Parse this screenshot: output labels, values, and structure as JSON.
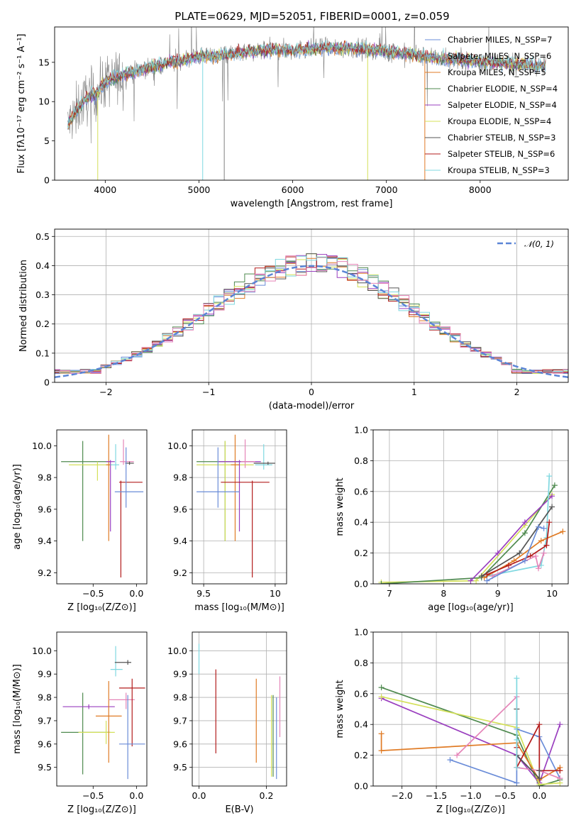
{
  "title": "PLATE=0629, MJD=52051, FIBERID=0001, z=0.059",
  "colors": {
    "chabrier_miles": "#6a8cd8",
    "salpeter_miles": "#7fb3e0",
    "kroupa_miles": "#e07b25",
    "chabrier_elodie": "#4f8a4f",
    "salpeter_elodie": "#9a3fbf",
    "kroupa_elodie": "#d4e05a",
    "chabrier_stelib": "#555555",
    "salpeter_stelib": "#b31c1c",
    "kroupa_stelib": "#7fd8e0",
    "pink": "#e585b8",
    "data": "#808080"
  },
  "chart_data": [
    {
      "id": "spectrum",
      "type": "line",
      "title": "PLATE=0629, MJD=52051, FIBERID=0001, z=0.059",
      "xlabel": "wavelength [Angstrom, rest frame]",
      "ylabel": "Flux [fλ10⁻¹⁷ erg cm⁻² s⁻¹ A⁻¹]",
      "xlim": [
        3460,
        8940
      ],
      "ylim": [
        0,
        19.5
      ],
      "xticks": [
        4000,
        5000,
        6000,
        7000,
        8000
      ],
      "yticks": [
        0,
        5,
        10,
        15
      ],
      "grid": false,
      "legend": "right",
      "legend_entries": [
        "Chabrier MILES, N_SSP=7",
        "Salpeter MILES, N_SSP=6",
        "Kroupa MILES, N_SSP=5",
        "Chabrier ELODIE, N_SSP=4",
        "Salpeter ELODIE, N_SSP=4",
        "Kroupa ELODIE, N_SSP=4",
        "Chabrier STELIB, N_SSP=3",
        "Salpeter STELIB, N_SSP=6",
        "Kroupa STELIB, N_SSP=3"
      ],
      "continuum": {
        "x": [
          3600,
          3700,
          3800,
          3900,
          4000,
          4100,
          4300,
          4500,
          4800,
          5000,
          5200,
          5500,
          5800,
          6000,
          6300,
          6600,
          7000,
          7300,
          7600,
          7800,
          8100,
          8400,
          8700
        ],
        "y": [
          7,
          9,
          10.5,
          11,
          12.5,
          13,
          13.8,
          14.5,
          15.2,
          15.8,
          15.8,
          16.3,
          16.6,
          16.5,
          16.8,
          16.8,
          16.4,
          15.9,
          15.5,
          15.3,
          15,
          14.8,
          14.5
        ]
      }
    },
    {
      "id": "residuals",
      "type": "line",
      "xlabel": "(data-model)/error",
      "ylabel": "Normed distribution",
      "xlim": [
        -2.5,
        2.5
      ],
      "ylim": [
        0,
        0.525
      ],
      "xticks": [
        -2,
        -1,
        0,
        1,
        2
      ],
      "yticks": [
        0.0,
        0.1,
        0.2,
        0.3,
        0.4,
        0.5
      ],
      "grid": true,
      "legend": "top-right",
      "legend_entries": [
        "𝒩(0, 1)"
      ]
    },
    {
      "id": "age_vs_Z",
      "type": "scatter",
      "xlabel": "Z [log₁₀(Z/Z⊙)]",
      "ylabel": "age  [log₁₀(age/yr)]",
      "xlim": [
        -0.92,
        0.12
      ],
      "ylim": [
        9.13,
        10.1
      ],
      "xticks": [
        -0.5,
        0.0
      ],
      "yticks": [
        9.2,
        9.4,
        9.6,
        9.8,
        10.0
      ],
      "grid": false,
      "points": [
        {
          "color": "chabrier_elodie",
          "x": -0.62,
          "xerr": [
            0.25,
            0.32
          ],
          "y": 9.9,
          "yerr": [
            0.5,
            0.13
          ]
        },
        {
          "color": "kroupa_elodie",
          "x": -0.45,
          "xerr": [
            0.33,
            0.17
          ],
          "y": 9.88,
          "yerr": [
            0.1,
            0.02
          ]
        },
        {
          "color": "kroupa_miles",
          "x": -0.32,
          "xerr": [
            0.03,
            0.03
          ],
          "y": 9.88,
          "yerr": [
            0.48,
            0.19
          ]
        },
        {
          "color": "salpeter_elodie",
          "x": -0.3,
          "xerr": [
            0.05,
            0.05
          ],
          "y": 9.9,
          "yerr": [
            0.44,
            0.01
          ]
        },
        {
          "color": "kroupa_stelib",
          "x": -0.24,
          "xerr": [
            0.06,
            0.04
          ],
          "y": 9.88,
          "yerr": [
            0.03,
            0.13
          ]
        },
        {
          "color": "pink",
          "x": -0.15,
          "xerr": [
            0.04,
            0.12
          ],
          "y": 9.9,
          "yerr": [
            0.02,
            0.14
          ]
        },
        {
          "color": "chabrier_stelib",
          "x": -0.08,
          "xerr": [
            0.05,
            0.05
          ],
          "y": 9.89,
          "yerr": [
            0.01,
            0.01
          ]
        },
        {
          "color": "salpeter_stelib",
          "x": -0.18,
          "xerr": [
            0.02,
            0.25
          ],
          "y": 9.77,
          "yerr": [
            0.6,
            0.01
          ]
        },
        {
          "color": "chabrier_miles",
          "x": -0.12,
          "xerr": [
            0.13,
            0.2
          ],
          "y": 9.71,
          "yerr": [
            0.1,
            0.28
          ]
        }
      ]
    },
    {
      "id": "age_vs_mass",
      "type": "scatter",
      "xlabel": "mass [log₁₀(M/M⊙)]",
      "ylabel": "",
      "xlim": [
        9.42,
        10.08
      ],
      "ylim": [
        9.13,
        10.1
      ],
      "xticks": [
        9.5,
        10.0
      ],
      "yticks": [
        9.2,
        9.4,
        9.6,
        9.8,
        10.0
      ],
      "grid": true,
      "points": [
        {
          "color": "chabrier_elodie",
          "x": 9.65,
          "xerr": [
            0.2,
            0.2
          ],
          "y": 9.9,
          "yerr": [
            0.5,
            0.13
          ]
        },
        {
          "color": "kroupa_elodie",
          "x": 9.65,
          "xerr": [
            0.2,
            0.2
          ],
          "y": 9.88,
          "yerr": [
            0.48,
            0.15
          ]
        },
        {
          "color": "kroupa_miles",
          "x": 9.72,
          "xerr": [
            0.03,
            0.03
          ],
          "y": 9.88,
          "yerr": [
            0.48,
            0.19
          ]
        },
        {
          "color": "salpeter_elodie",
          "x": 9.75,
          "xerr": [
            0.15,
            0.15
          ],
          "y": 9.9,
          "yerr": [
            0.44,
            0.01
          ]
        },
        {
          "color": "pink",
          "x": 9.79,
          "xerr": [
            0.03,
            0.07
          ],
          "y": 9.9,
          "yerr": [
            0.04,
            0.14
          ]
        },
        {
          "color": "kroupa_stelib",
          "x": 9.92,
          "xerr": [
            0.06,
            0.06
          ],
          "y": 9.88,
          "yerr": [
            0.03,
            0.13
          ]
        },
        {
          "color": "chabrier_stelib",
          "x": 9.95,
          "xerr": [
            0.1,
            0.05
          ],
          "y": 9.89,
          "yerr": [
            0.01,
            0.01
          ]
        },
        {
          "color": "salpeter_stelib",
          "x": 9.84,
          "xerr": [
            0.22,
            0.12
          ],
          "y": 9.77,
          "yerr": [
            0.6,
            0.01
          ]
        },
        {
          "color": "chabrier_miles",
          "x": 9.6,
          "xerr": [
            0.15,
            0.15
          ],
          "y": 9.71,
          "yerr": [
            0.1,
            0.28
          ]
        }
      ]
    },
    {
      "id": "weight_vs_age",
      "type": "line",
      "xlabel": "age  [log₁₀(age/yr)]",
      "ylabel": "mass weight",
      "xlim": [
        6.7,
        10.3
      ],
      "ylim": [
        0,
        1.0
      ],
      "xticks": [
        7,
        8,
        9,
        10
      ],
      "yticks": [
        0.0,
        0.2,
        0.4,
        0.6,
        0.8,
        1.0
      ],
      "grid": true,
      "series": [
        {
          "color": "kroupa_elodie",
          "x": [
            6.85,
            8.6,
            9.5,
            10.0
          ],
          "y": [
            0.01,
            0.02,
            0.38,
            0.58
          ]
        },
        {
          "color": "chabrier_elodie",
          "x": [
            6.85,
            8.7,
            9.5,
            10.05
          ],
          "y": [
            0.0,
            0.04,
            0.33,
            0.64
          ]
        },
        {
          "color": "salpeter_elodie",
          "x": [
            8.5,
            9.0,
            9.5,
            10.0
          ],
          "y": [
            0.02,
            0.2,
            0.4,
            0.57
          ]
        },
        {
          "color": "kroupa_stelib",
          "x": [
            8.8,
            9.8,
            9.9,
            9.95
          ],
          "y": [
            0.05,
            0.12,
            0.3,
            0.7
          ]
        },
        {
          "color": "kroupa_miles",
          "x": [
            8.75,
            9.3,
            9.8,
            10.2
          ],
          "y": [
            0.04,
            0.15,
            0.28,
            0.34
          ]
        },
        {
          "color": "chabrier_stelib",
          "x": [
            8.7,
            9.4,
            10.0
          ],
          "y": [
            0.05,
            0.2,
            0.5
          ]
        },
        {
          "color": "salpeter_stelib",
          "x": [
            8.8,
            9.2,
            9.6,
            9.9,
            9.95
          ],
          "y": [
            0.06,
            0.12,
            0.18,
            0.25,
            0.4
          ]
        },
        {
          "color": "pink",
          "x": [
            8.9,
            9.7,
            9.75,
            9.85
          ],
          "y": [
            0.05,
            0.18,
            0.1,
            0.2
          ]
        },
        {
          "color": "chabrier_miles",
          "x": [
            8.8,
            9.5,
            9.75,
            9.85
          ],
          "y": [
            0.02,
            0.15,
            0.37,
            0.36
          ]
        }
      ]
    },
    {
      "id": "mass_vs_Z",
      "type": "scatter",
      "xlabel": "Z [log₁₀(Z/Z⊙)]",
      "ylabel": "mass [log₁₀(M/M⊙)]",
      "xlim": [
        -0.92,
        0.12
      ],
      "ylim": [
        9.42,
        10.08
      ],
      "xticks": [
        -0.5,
        0.0
      ],
      "yticks": [
        9.5,
        9.6,
        9.7,
        9.8,
        9.9,
        10.0
      ],
      "grid": false,
      "points": [
        {
          "color": "chabrier_elodie",
          "x": -0.62,
          "xerr": [
            0.25,
            0.32
          ],
          "y": 9.65,
          "yerr": [
            0.18,
            0.17
          ]
        },
        {
          "color": "kroupa_elodie",
          "x": -0.35,
          "xerr": [
            0.32,
            0.1
          ],
          "y": 9.65,
          "yerr": [
            0.05,
            0.05
          ]
        },
        {
          "color": "salpeter_elodie",
          "x": -0.55,
          "xerr": [
            0.3,
            0.3
          ],
          "y": 9.76,
          "yerr": [
            0.01,
            0.01
          ]
        },
        {
          "color": "kroupa_miles",
          "x": -0.32,
          "xerr": [
            0.15,
            0.15
          ],
          "y": 9.72,
          "yerr": [
            0.2,
            0.15
          ]
        },
        {
          "color": "pink",
          "x": -0.12,
          "xerr": [
            0.2,
            0.1
          ],
          "y": 9.79,
          "yerr": [
            0.04,
            0.03
          ]
        },
        {
          "color": "kroupa_stelib",
          "x": -0.24,
          "xerr": [
            0.06,
            0.08
          ],
          "y": 9.92,
          "yerr": [
            0.03,
            0.1
          ]
        },
        {
          "color": "chabrier_stelib",
          "x": -0.1,
          "xerr": [
            0.15,
            0.04
          ],
          "y": 9.95,
          "yerr": [
            0.01,
            0.01
          ]
        },
        {
          "color": "salpeter_stelib",
          "x": -0.05,
          "xerr": [
            0.15,
            0.15
          ],
          "y": 9.84,
          "yerr": [
            0.25,
            0.04
          ]
        },
        {
          "color": "chabrier_miles",
          "x": -0.1,
          "xerr": [
            0.1,
            0.2
          ],
          "y": 9.6,
          "yerr": [
            0.15,
            0.21
          ]
        }
      ]
    },
    {
      "id": "mass_vs_ebv",
      "type": "scatter",
      "xlabel": "E(B-V)",
      "ylabel": "",
      "xlim": [
        -0.02,
        0.26
      ],
      "ylim": [
        9.42,
        10.08
      ],
      "xticks": [
        0.0,
        0.2
      ],
      "yticks": [
        9.5,
        9.6,
        9.7,
        9.8,
        9.9,
        10.0
      ],
      "grid": true,
      "points": [
        {
          "color": "kroupa_stelib",
          "x": 0.0,
          "xerr": [
            0,
            0
          ],
          "y": 9.96,
          "yerr": [
            0.06,
            0.07
          ]
        },
        {
          "color": "salpeter_stelib",
          "x": 0.05,
          "xerr": [
            0,
            0
          ],
          "y": 9.74,
          "yerr": [
            0.18,
            0.18
          ]
        },
        {
          "color": "kroupa_miles",
          "x": 0.17,
          "xerr": [
            0,
            0
          ],
          "y": 9.7,
          "yerr": [
            0.18,
            0.18
          ]
        },
        {
          "color": "chabrier_elodie",
          "x": 0.22,
          "xerr": [
            0,
            0
          ],
          "y": 9.63,
          "yerr": [
            0.17,
            0.18
          ]
        },
        {
          "color": "kroupa_elodie",
          "x": 0.215,
          "xerr": [
            0,
            0
          ],
          "y": 9.63,
          "yerr": [
            0.17,
            0.18
          ]
        },
        {
          "color": "chabrier_miles",
          "x": 0.23,
          "xerr": [
            0,
            0
          ],
          "y": 9.62,
          "yerr": [
            0.17,
            0.18
          ]
        },
        {
          "color": "pink",
          "x": 0.24,
          "xerr": [
            0,
            0
          ],
          "y": 9.76,
          "yerr": [
            0.13,
            0.13
          ]
        }
      ]
    },
    {
      "id": "weight_vs_Z",
      "type": "line",
      "xlabel": "Z [log₁₀(Z/Z⊙)]",
      "ylabel": "mass weight",
      "xlim": [
        -2.42,
        0.42
      ],
      "ylim": [
        0,
        1.0
      ],
      "xticks": [
        -2.0,
        -1.5,
        -1.0,
        -0.5,
        0.0
      ],
      "yticks": [
        0.0,
        0.2,
        0.4,
        0.6,
        0.8,
        1.0
      ],
      "grid": true,
      "series": [
        {
          "color": "chabrier_elodie",
          "x": [
            -2.3,
            -0.33,
            0.0,
            0.3
          ],
          "y": [
            0.64,
            0.33,
            0.0,
            0.04
          ]
        },
        {
          "color": "salpeter_elodie",
          "x": [
            -2.3,
            -0.33,
            0.0,
            0.3
          ],
          "y": [
            0.57,
            0.2,
            0.02,
            0.4
          ]
        },
        {
          "color": "kroupa_elodie",
          "x": [
            -2.3,
            -0.33,
            0.0,
            0.3
          ],
          "y": [
            0.58,
            0.38,
            0.01,
            0.02
          ]
        },
        {
          "color": "kroupa_miles",
          "x": [
            -2.3,
            -2.3,
            -0.33,
            0.0,
            0.3,
            0.3
          ],
          "y": [
            0.34,
            0.23,
            0.28,
            0.04,
            0.12,
            0.1
          ]
        },
        {
          "color": "chabrier_miles",
          "x": [
            -1.3,
            -0.33,
            -0.33,
            0.0,
            0.3
          ],
          "y": [
            0.17,
            0.02,
            0.37,
            0.32,
            0.05
          ]
        },
        {
          "color": "pink",
          "x": [
            -1.2,
            -0.33,
            -0.33,
            0.0,
            0.3
          ],
          "y": [
            0.2,
            0.58,
            0.12,
            0.1,
            0.05
          ]
        },
        {
          "color": "salpeter_stelib",
          "x": [
            -0.33,
            -0.33,
            0.0,
            0.0,
            0.3
          ],
          "y": [
            0.25,
            0.12,
            0.4,
            0.1,
            0.1
          ]
        },
        {
          "color": "chabrier_stelib",
          "x": [
            -0.33,
            -0.33,
            0.0,
            0.0
          ],
          "y": [
            0.5,
            0.2,
            0.05,
            0.1
          ]
        },
        {
          "color": "kroupa_stelib",
          "x": [
            -0.33,
            -0.33,
            -0.33
          ],
          "y": [
            0.7,
            0.3,
            0.12
          ]
        }
      ]
    }
  ]
}
